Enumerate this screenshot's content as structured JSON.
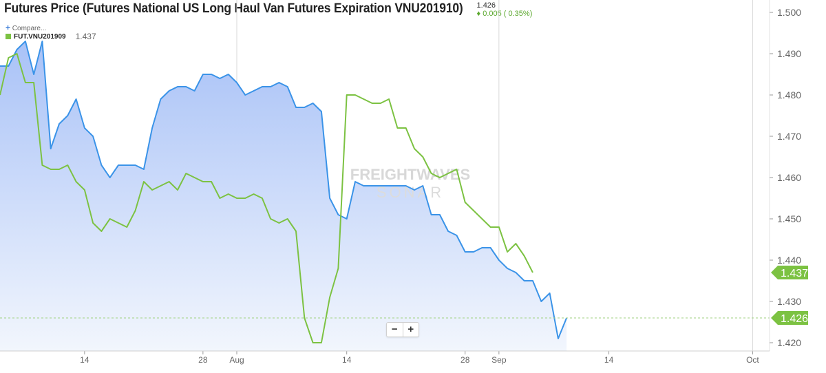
{
  "header": {
    "title": "Futures Price (Futures National US Long Haul Van Futures Expiration VNU201910)",
    "last_price": "1.426",
    "change": "0.005 ( 0.35%)",
    "change_icon": "diamond-up-icon"
  },
  "compare": {
    "plus": "+",
    "label": "Compare..."
  },
  "legend": {
    "name": "FUT.VNU201909",
    "value": "1.437"
  },
  "zoom": {
    "minus": "−",
    "plus": "+"
  },
  "watermark": {
    "line1": "FREIGHTWAVES",
    "line2": "SONAR"
  },
  "colors": {
    "primary": "#3a93e8",
    "secondary": "#7cc242",
    "area_top": "#a9c2f7",
    "area_bottom": "#f2f6fd",
    "axis_text": "#666666"
  },
  "chart_data": {
    "type": "line",
    "x": [
      "2019-07-05",
      "2019-07-06",
      "2019-07-07",
      "2019-07-08",
      "2019-07-09",
      "2019-07-10",
      "2019-07-11",
      "2019-07-12",
      "2019-07-13",
      "2019-07-14",
      "2019-07-15",
      "2019-07-16",
      "2019-07-17",
      "2019-07-18",
      "2019-07-19",
      "2019-07-20",
      "2019-07-21",
      "2019-07-22",
      "2019-07-23",
      "2019-07-24",
      "2019-07-25",
      "2019-07-26",
      "2019-07-27",
      "2019-07-28",
      "2019-07-29",
      "2019-07-30",
      "2019-07-31",
      "2019-08-01",
      "2019-08-02",
      "2019-08-03",
      "2019-08-04",
      "2019-08-05",
      "2019-08-06",
      "2019-08-07",
      "2019-08-08",
      "2019-08-09",
      "2019-08-10",
      "2019-08-11",
      "2019-08-12",
      "2019-08-13",
      "2019-08-14",
      "2019-08-15",
      "2019-08-16",
      "2019-08-17",
      "2019-08-18",
      "2019-08-19",
      "2019-08-20",
      "2019-08-21",
      "2019-08-22",
      "2019-08-23",
      "2019-08-24",
      "2019-08-25",
      "2019-08-26",
      "2019-08-27",
      "2019-08-28",
      "2019-08-29",
      "2019-08-30",
      "2019-08-31",
      "2019-09-01",
      "2019-09-02",
      "2019-09-03",
      "2019-09-04",
      "2019-09-05",
      "2019-09-06",
      "2019-09-07",
      "2019-09-08",
      "2019-09-09",
      "2019-09-10",
      "2019-09-11",
      "2019-09-12",
      "2019-09-13",
      "2019-09-14",
      "2019-09-15",
      "2019-09-16",
      "2019-09-17",
      "2019-09-18",
      "2019-09-19",
      "2019-09-20",
      "2019-09-21",
      "2019-09-22",
      "2019-09-23",
      "2019-09-24",
      "2019-09-25",
      "2019-09-26",
      "2019-09-27",
      "2019-09-28",
      "2019-09-29",
      "2019-09-30",
      "2019-10-01",
      "2019-10-02"
    ],
    "series": [
      {
        "name": "VNU201910",
        "type": "area",
        "values": [
          1.487,
          1.491,
          1.493,
          1.485,
          1.493,
          1.467,
          1.473,
          1.475,
          1.479,
          1.472,
          1.47,
          1.463,
          1.46,
          1.463,
          1.463,
          1.463,
          1.462,
          1.472,
          1.479,
          1.481,
          1.482,
          1.482,
          1.481,
          1.485,
          1.485,
          1.484,
          1.485,
          1.483,
          1.48,
          1.481,
          1.482,
          1.482,
          1.483,
          1.482,
          1.477,
          1.477,
          1.478,
          1.476,
          1.455,
          1.451,
          1.45,
          1.459,
          1.458,
          1.458,
          1.458,
          1.458,
          1.458,
          1.458,
          1.457,
          1.458,
          1.451,
          1.451,
          1.447,
          1.446,
          1.442,
          1.442,
          1.443,
          1.443,
          1.44,
          1.438,
          1.437,
          1.435,
          1.435,
          1.43,
          1.432,
          1.421,
          1.426,
          null,
          null,
          null,
          null,
          null,
          null,
          null,
          null,
          null,
          null,
          null,
          null,
          null,
          null,
          null,
          null,
          null,
          null,
          null,
          null,
          null,
          null,
          null
        ]
      },
      {
        "name": "FUT.VNU201909",
        "values": [
          1.489,
          1.49,
          1.483,
          1.483,
          1.463,
          1.462,
          1.462,
          1.463,
          1.459,
          1.457,
          1.449,
          1.447,
          1.45,
          1.449,
          1.448,
          1.452,
          1.459,
          1.457,
          1.458,
          1.459,
          1.457,
          1.461,
          1.46,
          1.459,
          1.459,
          1.455,
          1.456,
          1.455,
          1.455,
          1.456,
          1.455,
          1.45,
          1.449,
          1.45,
          1.447,
          1.426,
          1.42,
          1.42,
          1.431,
          1.438,
          1.48,
          1.48,
          1.479,
          1.478,
          1.478,
          1.479,
          1.472,
          1.472,
          1.467,
          1.465,
          1.461,
          1.46,
          1.461,
          1.462,
          1.454,
          1.452,
          1.45,
          1.448,
          1.448,
          1.442,
          1.444,
          1.441,
          1.437,
          null,
          null,
          null,
          null,
          null,
          null,
          null,
          null,
          null,
          null,
          null,
          null,
          null,
          null,
          null,
          null,
          null,
          null,
          null,
          null,
          null,
          null,
          null,
          null,
          null,
          null,
          null
        ]
      }
    ],
    "x_ticks": [
      "14",
      "28",
      "Aug",
      "14",
      "28",
      "Sep",
      "14",
      "Oct"
    ],
    "y_ticks": [
      "1.420",
      "1.430",
      "1.440",
      "1.450",
      "1.460",
      "1.470",
      "1.480",
      "1.490",
      "1.500"
    ],
    "ylim": [
      1.418,
      1.503
    ],
    "last_value_labels": [
      "1.437",
      "1.426"
    ],
    "reference_line": 1.426,
    "grid": "vertical",
    "legend_position": "top-left"
  }
}
